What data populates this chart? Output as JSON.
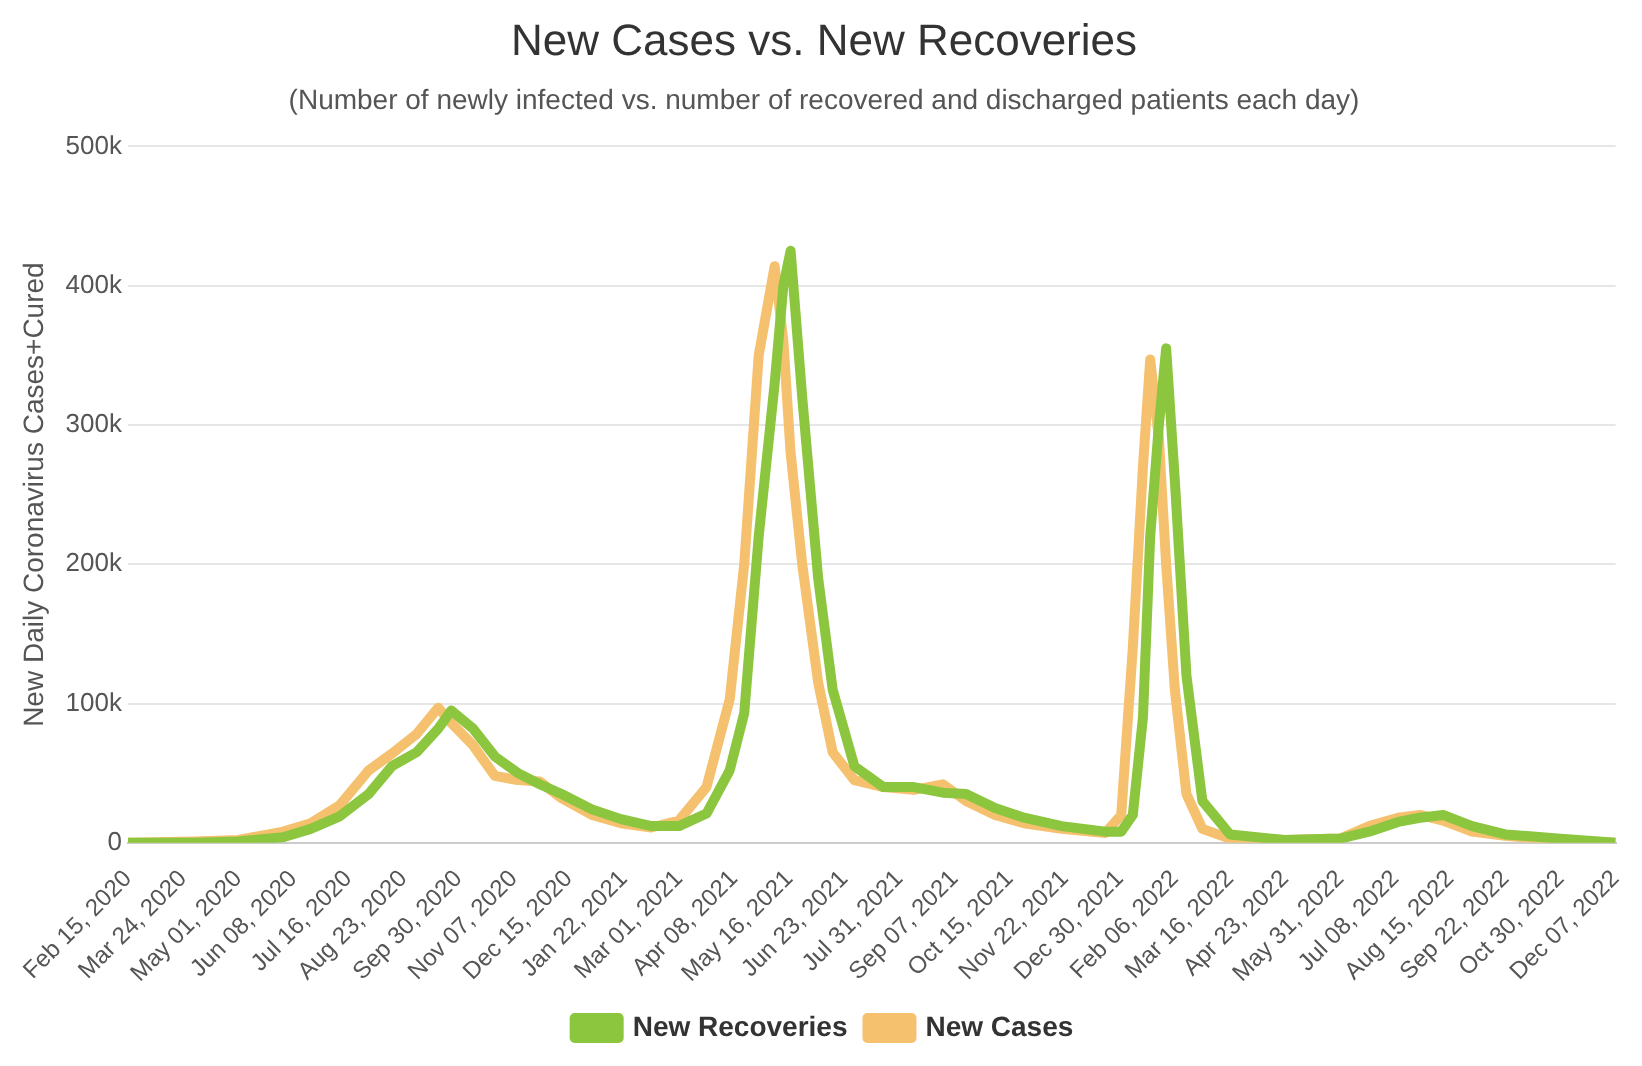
{
  "chart_data": {
    "type": "line",
    "title": "New Cases vs. New Recoveries",
    "subtitle": "(Number of newly infected vs. number of recovered and discharged patients each day)",
    "ylabel": "New Daily Coronavirus Cases+Cured",
    "x": [
      "2020-02-15",
      "2020-04-01",
      "2020-05-01",
      "2020-06-01",
      "2020-06-20",
      "2020-07-10",
      "2020-07-30",
      "2020-08-15",
      "2020-09-01",
      "2020-09-16",
      "2020-09-25",
      "2020-10-10",
      "2020-10-25",
      "2020-11-10",
      "2020-11-25",
      "2020-12-10",
      "2020-12-31",
      "2021-01-20",
      "2021-02-10",
      "2021-03-01",
      "2021-03-20",
      "2021-04-05",
      "2021-04-15",
      "2021-04-25",
      "2021-05-06",
      "2021-05-12",
      "2021-05-17",
      "2021-05-25",
      "2021-06-05",
      "2021-06-15",
      "2021-06-30",
      "2021-07-20",
      "2021-08-10",
      "2021-08-30",
      "2021-09-15",
      "2021-10-05",
      "2021-10-25",
      "2021-11-20",
      "2021-12-20",
      "2021-12-31",
      "2022-01-08",
      "2022-01-15",
      "2022-01-20",
      "2022-01-26",
      "2022-01-31",
      "2022-02-06",
      "2022-02-14",
      "2022-02-25",
      "2022-03-16",
      "2022-04-23",
      "2022-05-31",
      "2022-06-20",
      "2022-07-10",
      "2022-07-25",
      "2022-08-10",
      "2022-08-30",
      "2022-09-22",
      "2022-10-30",
      "2022-12-07"
    ],
    "series": [
      {
        "name": "New Recoveries",
        "color": "#8cc63f",
        "values": [
          0,
          0,
          1000,
          4000,
          10000,
          19000,
          35000,
          55000,
          65000,
          82000,
          95000,
          82000,
          62000,
          50000,
          42000,
          35000,
          24000,
          17000,
          12000,
          12000,
          21000,
          52000,
          93000,
          220000,
          330000,
          400000,
          425000,
          320000,
          190000,
          110000,
          55000,
          40000,
          40000,
          36000,
          35000,
          25000,
          18000,
          12000,
          8000,
          8000,
          20000,
          90000,
          220000,
          300000,
          355000,
          260000,
          120000,
          30000,
          6000,
          2000,
          3000,
          8000,
          15000,
          18000,
          20000,
          12000,
          6000,
          3000,
          0
        ]
      },
      {
        "name": "New Cases",
        "color": "#f5c16f",
        "values": [
          0,
          1000,
          2000,
          8000,
          14000,
          27000,
          52000,
          64000,
          78000,
          97000,
          86000,
          70000,
          48000,
          45000,
          44000,
          32000,
          20000,
          14000,
          11000,
          16000,
          40000,
          103000,
          200000,
          350000,
          414000,
          360000,
          280000,
          200000,
          115000,
          65000,
          45000,
          40000,
          38000,
          42000,
          30000,
          20000,
          14000,
          10000,
          7000,
          20000,
          140000,
          270000,
          347000,
          290000,
          200000,
          110000,
          35000,
          10000,
          3000,
          2000,
          3000,
          12000,
          18000,
          20000,
          16000,
          8000,
          5000,
          2000,
          0
        ]
      }
    ],
    "xlim": [
      "2020-02-15",
      "2022-12-07"
    ],
    "xticks": [
      {
        "value": "2020-02-15",
        "label": "Feb 15, 2020"
      },
      {
        "value": "2020-03-24",
        "label": "Mar 24, 2020"
      },
      {
        "value": "2020-05-01",
        "label": "May 01, 2020"
      },
      {
        "value": "2020-06-08",
        "label": "Jun 08, 2020"
      },
      {
        "value": "2020-07-16",
        "label": "Jul 16, 2020"
      },
      {
        "value": "2020-08-23",
        "label": "Aug 23, 2020"
      },
      {
        "value": "2020-09-30",
        "label": "Sep 30, 2020"
      },
      {
        "value": "2020-11-07",
        "label": "Nov 07, 2020"
      },
      {
        "value": "2020-12-15",
        "label": "Dec 15, 2020"
      },
      {
        "value": "2021-01-22",
        "label": "Jan 22, 2021"
      },
      {
        "value": "2021-03-01",
        "label": "Mar 01, 2021"
      },
      {
        "value": "2021-04-08",
        "label": "Apr 08, 2021"
      },
      {
        "value": "2021-05-16",
        "label": "May 16, 2021"
      },
      {
        "value": "2021-06-23",
        "label": "Jun 23, 2021"
      },
      {
        "value": "2021-07-31",
        "label": "Jul 31, 2021"
      },
      {
        "value": "2021-09-07",
        "label": "Sep 07, 2021"
      },
      {
        "value": "2021-10-15",
        "label": "Oct 15, 2021"
      },
      {
        "value": "2021-11-22",
        "label": "Nov 22, 2021"
      },
      {
        "value": "2021-12-30",
        "label": "Dec 30, 2021"
      },
      {
        "value": "2022-02-06",
        "label": "Feb 06, 2022"
      },
      {
        "value": "2022-03-16",
        "label": "Mar 16, 2022"
      },
      {
        "value": "2022-04-23",
        "label": "Apr 23, 2022"
      },
      {
        "value": "2022-05-31",
        "label": "May 31, 2022"
      },
      {
        "value": "2022-07-08",
        "label": "Jul 08, 2022"
      },
      {
        "value": "2022-08-15",
        "label": "Aug 15, 2022"
      },
      {
        "value": "2022-09-22",
        "label": "Sep 22, 2022"
      },
      {
        "value": "2022-10-30",
        "label": "Oct 30, 2022"
      },
      {
        "value": "2022-12-07",
        "label": "Dec 07, 2022"
      }
    ],
    "ylim": [
      0,
      500000
    ],
    "yticks": [
      {
        "value": 0,
        "label": "0"
      },
      {
        "value": 100000,
        "label": "100k"
      },
      {
        "value": 200000,
        "label": "200k"
      },
      {
        "value": 300000,
        "label": "300k"
      },
      {
        "value": 400000,
        "label": "400k"
      },
      {
        "value": 500000,
        "label": "500k"
      }
    ],
    "grid": "y",
    "legend": "bottom",
    "marker": "none",
    "line_style": "solid"
  }
}
